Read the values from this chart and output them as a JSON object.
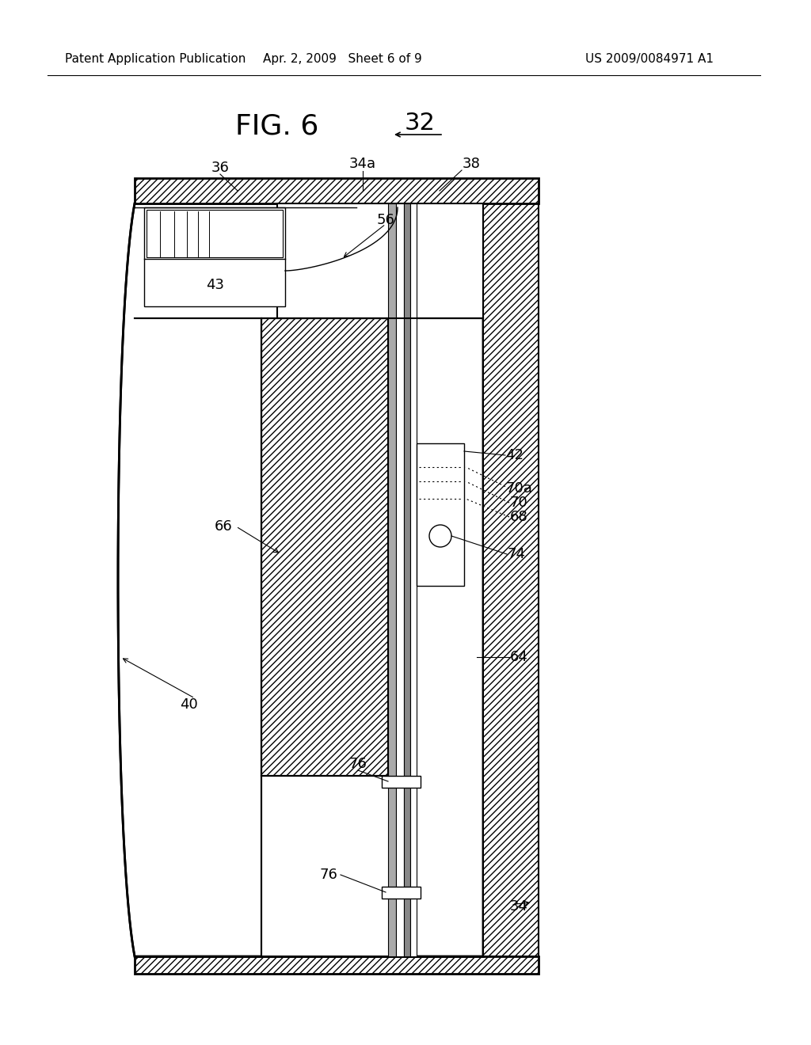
{
  "header_left": "Patent Application Publication",
  "header_mid": "Apr. 2, 2009   Sheet 6 of 9",
  "header_right": "US 2009/0084971 A1",
  "title": "FIG. 6",
  "label_32": "32",
  "bg_color": "#ffffff"
}
